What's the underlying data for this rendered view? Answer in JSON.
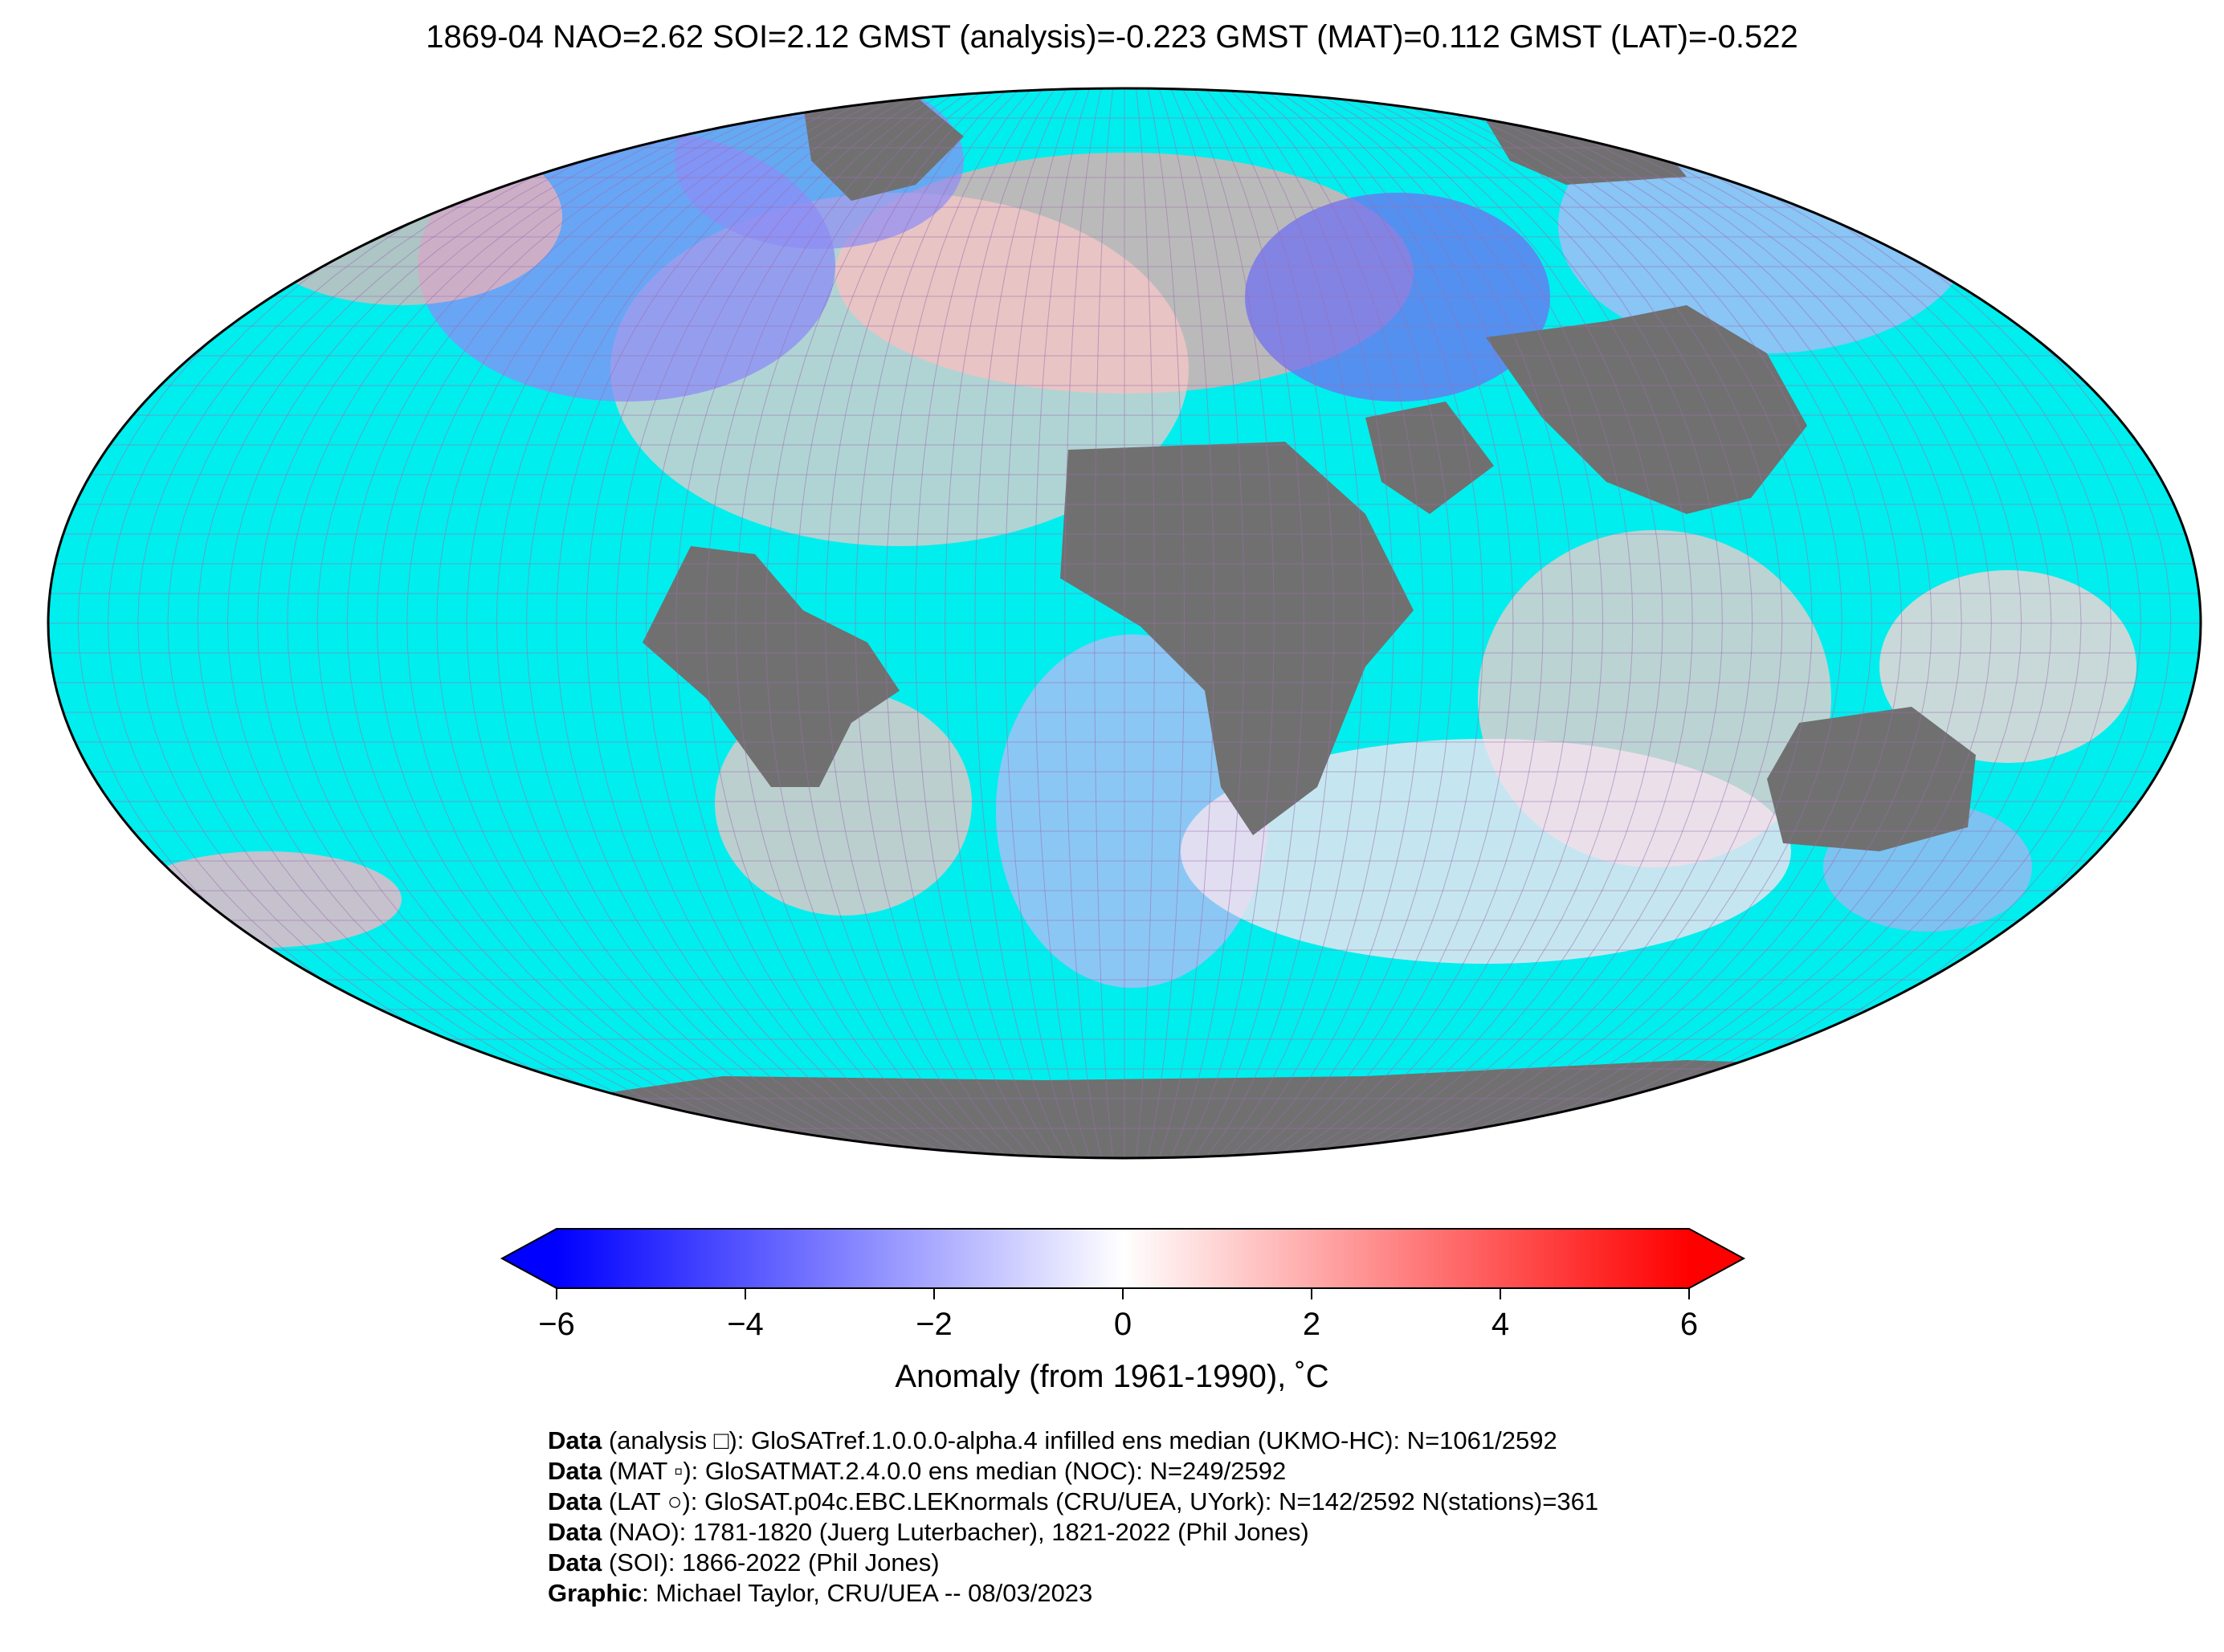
{
  "title": "1869-04 NAO=2.62 SOI=2.12 GMST (analysis)=-0.223 GMST (MAT)=0.112 GMST (LAT)=-0.522",
  "colors": {
    "ocean": "#00eeee",
    "land_nodata": "#707070",
    "grid": "#9a6fb0",
    "outline": "#000000",
    "cold_end": "#0000ff",
    "neutral": "#ffffff",
    "warm_end": "#ff0000"
  },
  "colorbar": {
    "min": -6,
    "max": 6,
    "extend": "both",
    "ticks": [
      {
        "value": -6,
        "label": "−6"
      },
      {
        "value": -4,
        "label": "−4"
      },
      {
        "value": -2,
        "label": "−2"
      },
      {
        "value": 0,
        "label": "0"
      },
      {
        "value": 2,
        "label": "2"
      },
      {
        "value": 4,
        "label": "4"
      },
      {
        "value": 6,
        "label": "6"
      }
    ],
    "label": "Anomaly (from 1961-1990), ˚C"
  },
  "credits": [
    {
      "bold": "Data",
      "text": " (analysis □): GloSATref.1.0.0.0-alpha.4 infilled ens median (UKMO-HC): N=1061/2592"
    },
    {
      "bold": "Data",
      "text": " (MAT ▫): GloSATMAT.2.4.0.0 ens median (NOC): N=249/2592"
    },
    {
      "bold": "Data",
      "text": " (LAT ○): GloSAT.p04c.EBC.LEKnormals (CRU/UEA, UYork): N=142/2592 N(stations)=361"
    },
    {
      "bold": "Data",
      "text": " (NAO): 1781-1820 (Juerg Luterbacher), 1821-2022 (Phil Jones)"
    },
    {
      "bold": "Data",
      "text": " (SOI): 1866-2022 (Phil Jones)"
    },
    {
      "bold": "Graphic",
      "text": ": Michael Taylor, CRU/UEA -- 08/03/2023"
    }
  ]
}
